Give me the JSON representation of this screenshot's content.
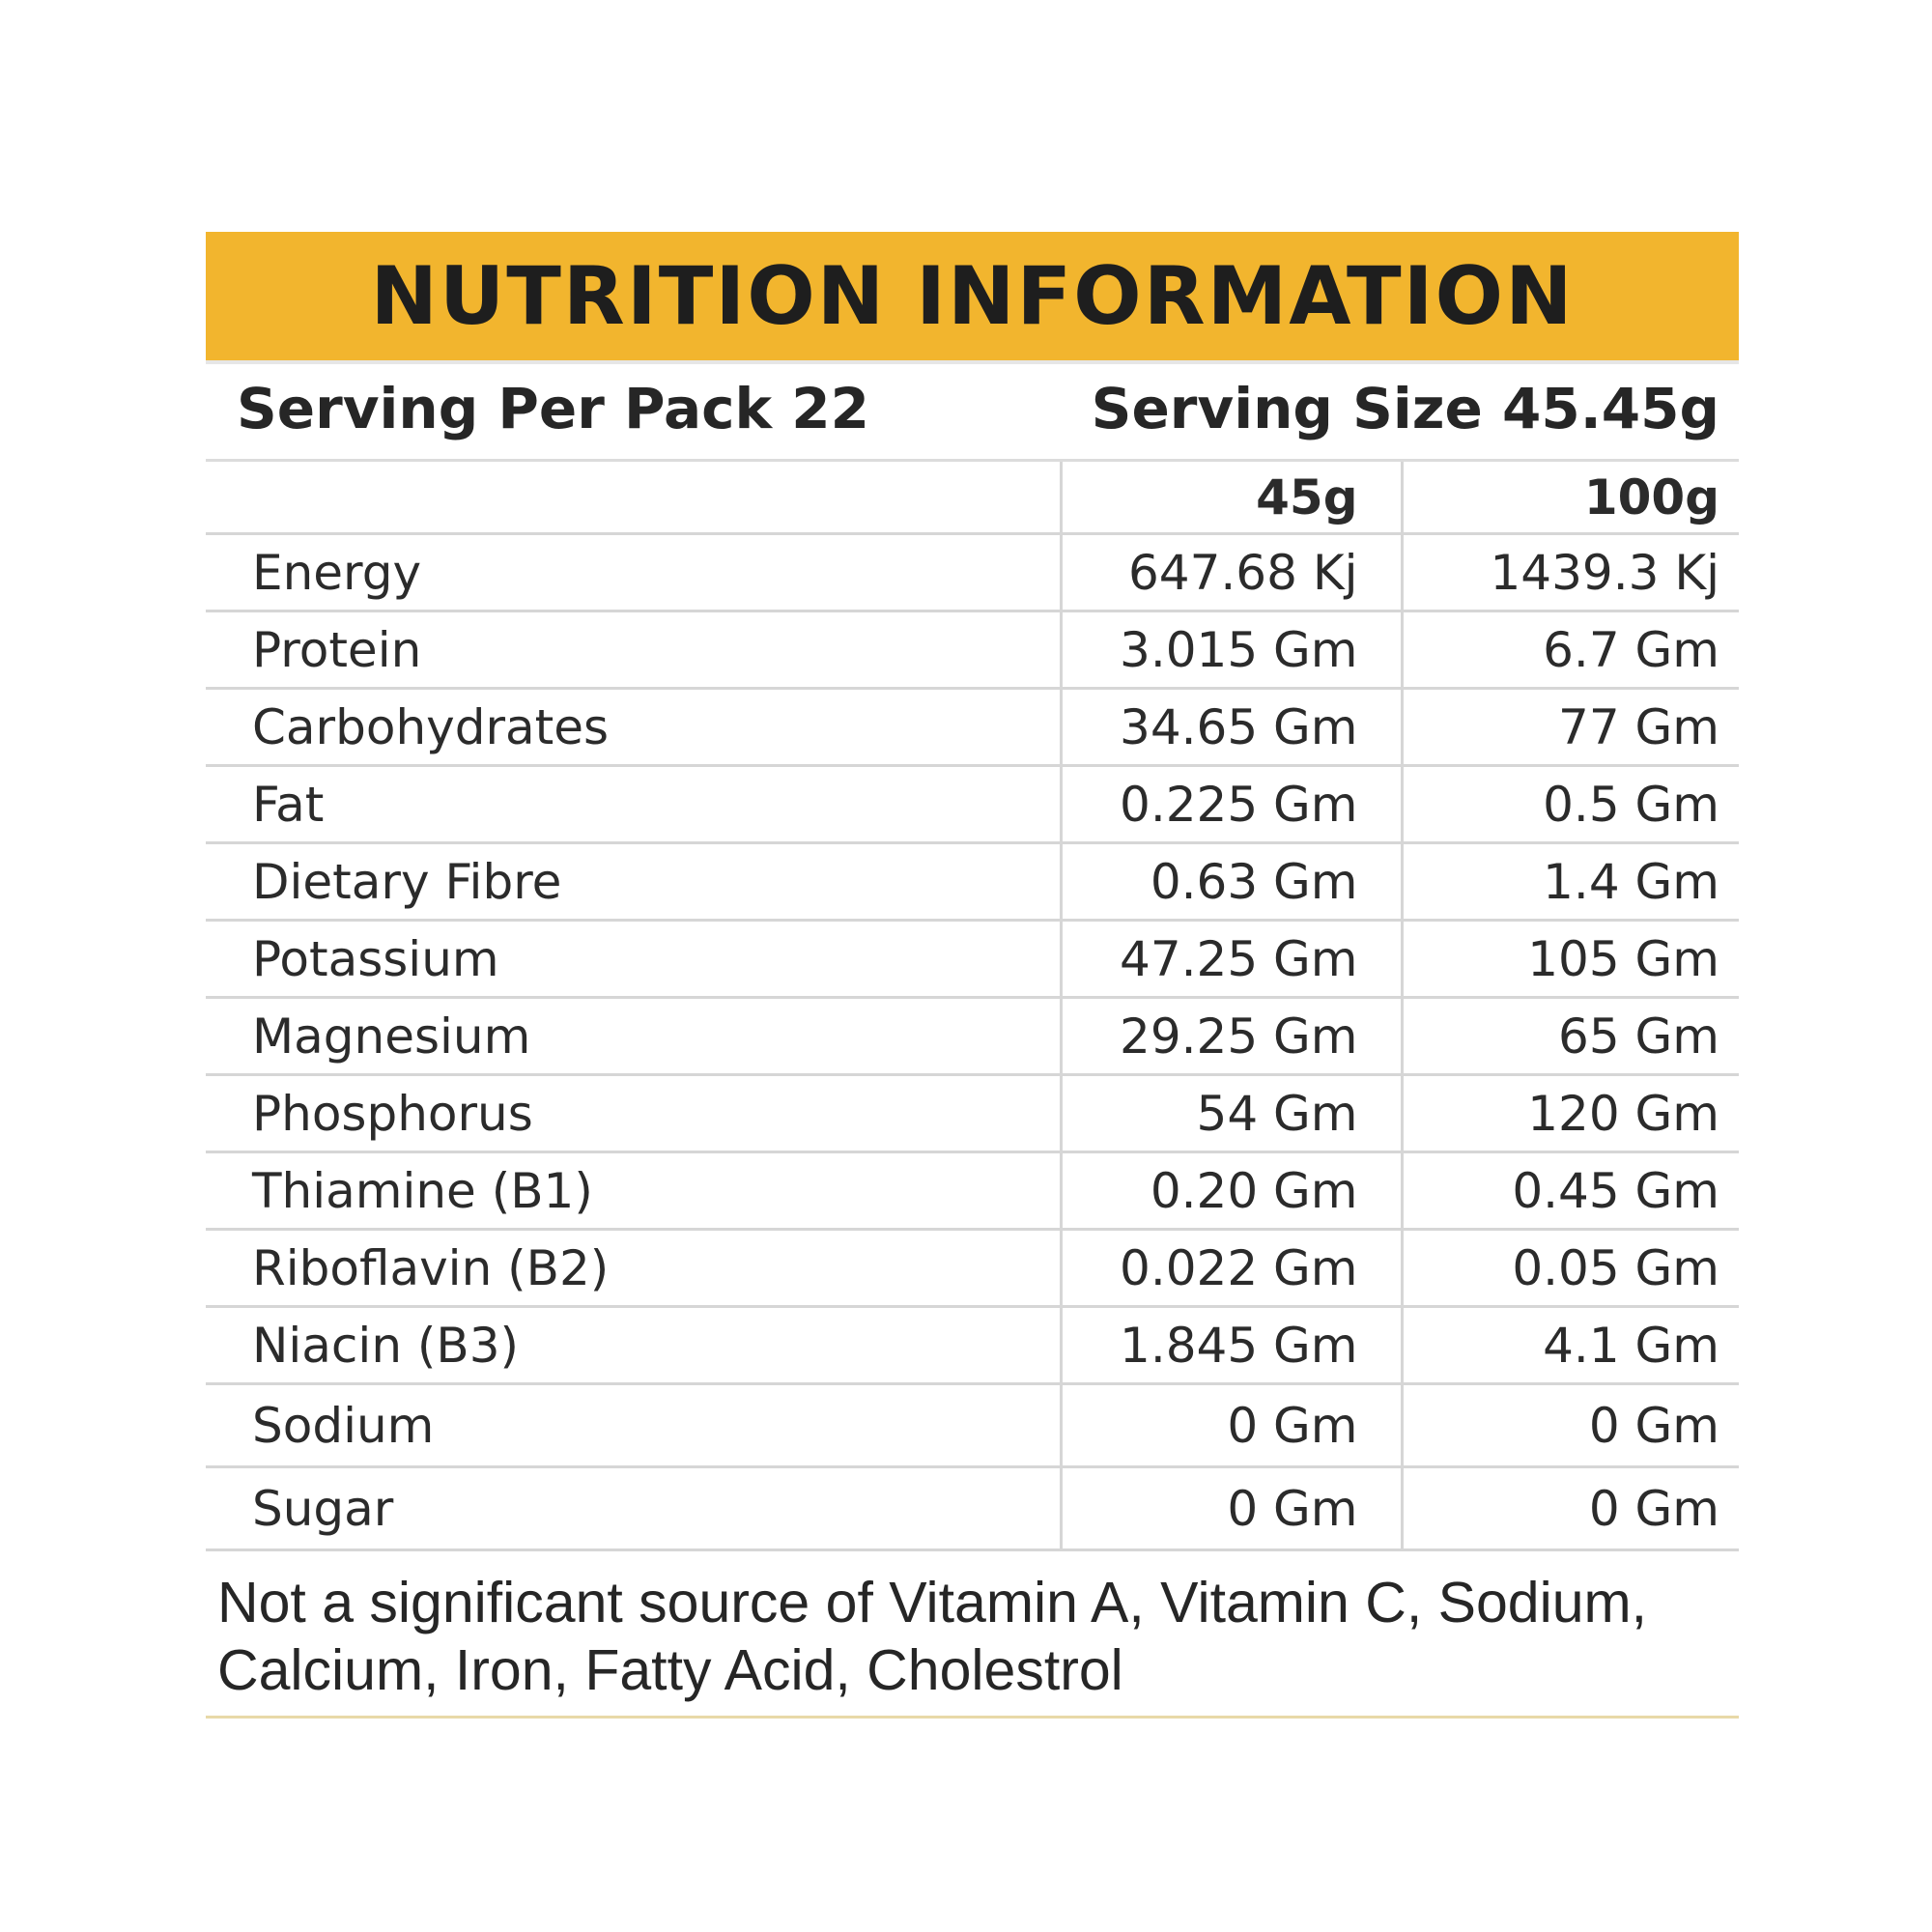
{
  "title": "NUTRITION INFORMATION",
  "serving": {
    "per_pack": "Serving Per Pack 22",
    "size": "Serving Size 45.45g"
  },
  "columns": [
    "",
    "45g",
    "100g"
  ],
  "rows": [
    {
      "name": "Energy",
      "v45": "647.68 Kj",
      "v100": "1439.3 Kj"
    },
    {
      "name": "Protein",
      "v45": "3.015 Gm",
      "v100": "6.7 Gm"
    },
    {
      "name": "Carbohydrates",
      "v45": "34.65 Gm",
      "v100": "77 Gm"
    },
    {
      "name": "Fat",
      "v45": "0.225 Gm",
      "v100": "0.5 Gm"
    },
    {
      "name": "Dietary Fibre",
      "v45": "0.63 Gm",
      "v100": "1.4 Gm"
    },
    {
      "name": "Potassium",
      "v45": "47.25 Gm",
      "v100": "105 Gm"
    },
    {
      "name": "Magnesium",
      "v45": "29.25 Gm",
      "v100": "65 Gm"
    },
    {
      "name": "Phosphorus",
      "v45": "54 Gm",
      "v100": "120 Gm"
    },
    {
      "name": "Thiamine (B1)",
      "v45": "0.20 Gm",
      "v100": "0.45 Gm"
    },
    {
      "name": "Riboflavin (B2)",
      "v45": "0.022 Gm",
      "v100": "0.05 Gm"
    },
    {
      "name": "Niacin (B3)",
      "v45": "1.845 Gm",
      "v100": "4.1 Gm"
    },
    {
      "name": "Sodium",
      "v45": "0 Gm",
      "v100": "0 Gm"
    },
    {
      "name": "Sugar",
      "v45": "0 Gm",
      "v100": "0 Gm"
    }
  ],
  "note": {
    "line1": "Not a significant source of Vitamin A, Vitamin C, Sodium,",
    "line2": "Calcium, Iron, Fatty Acid, Cholestrol"
  },
  "colors": {
    "title_bar": "#f2b52e",
    "text": "#2b2b2b",
    "rule": "#d6d6d6"
  }
}
